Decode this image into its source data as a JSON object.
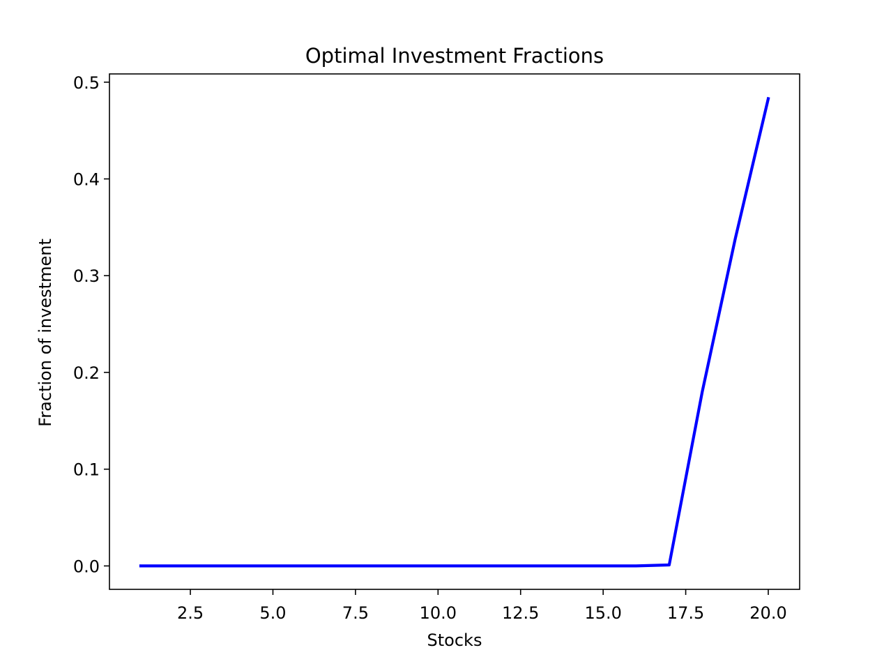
{
  "chart_data": {
    "type": "line",
    "title": "Optimal Investment Fractions",
    "xlabel": "Stocks",
    "ylabel": "Fraction of investment",
    "xlim": [
      0.05,
      20.95
    ],
    "ylim": [
      -0.0242,
      0.5085
    ],
    "xticks": [
      2.5,
      5.0,
      7.5,
      10.0,
      12.5,
      15.0,
      17.5,
      20.0
    ],
    "xtick_labels": [
      "2.5",
      "5.0",
      "7.5",
      "10.0",
      "12.5",
      "15.0",
      "17.5",
      "20.0"
    ],
    "yticks": [
      0.0,
      0.1,
      0.2,
      0.3,
      0.4,
      0.5
    ],
    "ytick_labels": [
      "0.0",
      "0.1",
      "0.2",
      "0.3",
      "0.4",
      "0.5"
    ],
    "grid": false,
    "series": [
      {
        "color": "#0000ff",
        "x": [
          1,
          2,
          3,
          4,
          5,
          6,
          7,
          8,
          9,
          10,
          11,
          12,
          13,
          14,
          15,
          16,
          17,
          18,
          19,
          20
        ],
        "values": [
          0.0,
          0.0,
          0.0,
          0.0,
          0.0,
          0.0,
          0.0,
          0.0,
          0.0,
          0.0,
          0.0,
          0.0,
          0.0,
          0.0,
          0.0,
          0.0,
          0.001,
          0.18,
          0.338,
          0.483
        ]
      }
    ]
  }
}
